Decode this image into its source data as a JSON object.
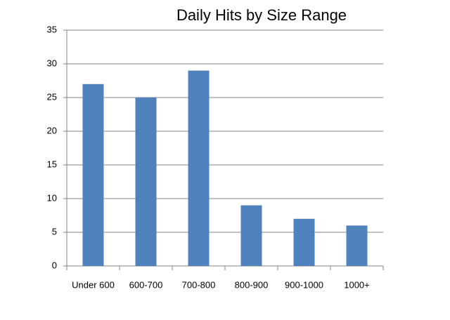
{
  "chart_data": {
    "type": "bar",
    "title": "Daily Hits by Size Range",
    "categories": [
      "Under 600",
      "600-700",
      "700-800",
      "800-900",
      "900-1000",
      "1000+"
    ],
    "values": [
      27,
      25,
      29,
      9,
      7,
      6
    ],
    "color": "#4f81bd",
    "ylim": [
      0,
      35
    ],
    "yticks": [
      0,
      5,
      10,
      15,
      20,
      25,
      30,
      35
    ],
    "grid": true
  }
}
